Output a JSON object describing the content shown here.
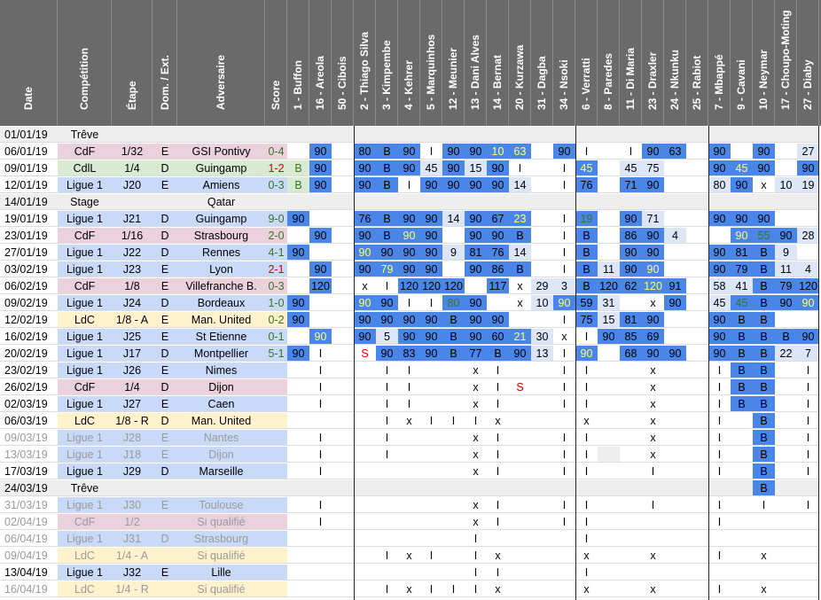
{
  "headers": [
    "Date",
    "Compétition",
    "Étape",
    "Dom. / Ext.",
    "Adversaire",
    "Score",
    "1 - Buffon",
    "16 - Areola",
    "50 - Cibois",
    "2 - Thiago Silva",
    "3 - Kimpembe",
    "4 - Kehrer",
    "5 - Marquinhos",
    "12 - Meunier",
    "13 - Dani Alves",
    "14 - Bernat",
    "20 - Kurzawa",
    "31 - Dagba",
    "34 - Nsoki",
    "6 - Verratti",
    "8 - Paredes",
    "11 - Di Maria",
    "23 - Draxler",
    "24 - Nkunku",
    "25 - Rabiot",
    "7 - Mbappé",
    "9 - Cavani",
    "10 - Neymar",
    "17 - Choupo-Moting",
    "27 - Diaby"
  ],
  "colors": {
    "header_bg": "#6a6a6a",
    "blue": "#4a86e8",
    "light_blue": "#c9daf8",
    "pale_blue": "#dce6f7",
    "cdf": "#ead1dc",
    "cdl": "#d9ead3",
    "ldc": "#fff2cc",
    "ligue1": "#c9daf8",
    "grey": "#eeeeee",
    "score_win": "#38761d",
    "score_loss": "#cc0000",
    "yellow": "#ffff66"
  },
  "rows": [
    {
      "date": "01/01/19",
      "comp": "Trêve",
      "type": "grey",
      "cells": {}
    },
    {
      "date": "06/01/19",
      "comp": "CdF",
      "etape": "1/32",
      "de": "E",
      "adv": "GSI Pontivy",
      "score": "0-4",
      "res": "W",
      "type": "cdf",
      "cells": {
        "7": "90B",
        "9": "80B",
        "10": "B",
        "11": "90B",
        "12": "I",
        "13": "90B",
        "14": "90B",
        "15": "10Y",
        "16": "63Y",
        "18": "90B",
        "19": "I",
        "21": "I",
        "22": "90B",
        "23": "63B",
        "25": "90B",
        "27": "90B",
        "29": "27"
      }
    },
    {
      "date": "09/01/19",
      "comp": "CdlL",
      "etape": "1/4",
      "de": "D",
      "adv": "Guingamp",
      "score": "1-2",
      "res": "L",
      "type": "cdl",
      "cells": {
        "6": "BG",
        "7": "90B",
        "9": "90B",
        "10": "B",
        "11": "90B",
        "12": "45",
        "13": "90B",
        "14": "15",
        "15": "90B",
        "16": "I",
        "18": "I",
        "19": "45Y",
        "21": "45",
        "22": "75",
        "25": "90B",
        "26": "45Y",
        "27": "90B",
        "29": "90B"
      }
    },
    {
      "date": "12/01/19",
      "comp": "Ligue 1",
      "etape": "J20",
      "de": "E",
      "adv": "Amiens",
      "score": "0-3",
      "res": "W",
      "type": "ligue1",
      "cells": {
        "6": "BG",
        "7": "90B",
        "9": "90B",
        "10": "B",
        "11": "I",
        "12": "90B",
        "13": "90B",
        "14": "90B",
        "15": "90B",
        "16": "14",
        "18": "I",
        "19": "76B",
        "21": "71B",
        "22": "90B",
        "25": "80",
        "26": "90B",
        "27": "x",
        "28": "10",
        "29": "19"
      }
    },
    {
      "date": "14/01/19",
      "comp": "Stage",
      "etape": "",
      "de": "",
      "adv": "Qatar",
      "score": "",
      "type": "grey",
      "cells": {}
    },
    {
      "date": "19/01/19",
      "comp": "Ligue 1",
      "etape": "J21",
      "de": "D",
      "adv": "Guingamp",
      "score": "9-0",
      "res": "W",
      "type": "ligue1",
      "cells": {
        "6": "90B",
        "9": "76B",
        "10": "B",
        "11": "90B",
        "12": "90B",
        "13": "14",
        "14": "90B",
        "15": "67B",
        "16": "23Y",
        "18": "I",
        "19": "19G",
        "21": "90B",
        "22": "71",
        "25": "90B",
        "26": "90B",
        "27": "90B"
      }
    },
    {
      "date": "23/01/19",
      "comp": "CdF",
      "etape": "1/16",
      "de": "D",
      "adv": "Strasbourg",
      "score": "2-0",
      "res": "W",
      "type": "cdf",
      "cells": {
        "7": "90B",
        "9": "90B",
        "10": "B",
        "11": "90Y",
        "12": "90B",
        "14": "90B",
        "15": "90B",
        "16": "B",
        "18": "I",
        "19": "B",
        "21": "86B",
        "22": "90B",
        "23": "4",
        "26": "90Y",
        "27": "55G",
        "28": "90B",
        "29": "28"
      }
    },
    {
      "date": "27/01/19",
      "comp": "Ligue 1",
      "etape": "J22",
      "de": "D",
      "adv": "Rennes",
      "score": "4-1",
      "res": "W",
      "type": "ligue1",
      "cells": {
        "6": "90B",
        "9": "90Y",
        "10": "90B",
        "11": "90B",
        "12": "90B",
        "13": "9",
        "14": "81B",
        "15": "76B",
        "16": "14",
        "18": "I",
        "19": "B",
        "21": "90B",
        "22": "90B",
        "25": "90B",
        "26": "81B",
        "27": "B",
        "28": "9"
      }
    },
    {
      "date": "03/02/19",
      "comp": "Ligue 1",
      "etape": "J23",
      "de": "E",
      "adv": "Lyon",
      "score": "2-1",
      "res": "L",
      "type": "ligue1",
      "cells": {
        "7": "90B",
        "9": "90B",
        "10": "79Y",
        "11": "90B",
        "12": "90B",
        "14": "90B",
        "15": "86B",
        "16": "B",
        "18": "I",
        "19": "B",
        "20": "11",
        "21": "90B",
        "22": "90Y",
        "25": "90B",
        "26": "79B",
        "27": "B",
        "28": "11",
        "29": "4"
      }
    },
    {
      "date": "06/02/19",
      "comp": "CdF",
      "etape": "1/8",
      "de": "E",
      "adv": "Villefranche B.",
      "score": "0-3",
      "res": "W",
      "type": "cdf",
      "cells": {
        "7": "120B",
        "9": "x",
        "10": "I",
        "11": "120B",
        "12": "120B",
        "13": "120B",
        "15": "117B",
        "16": "x",
        "17": "29",
        "18": "3",
        "19": "B",
        "20": "120B",
        "21": "62B",
        "22": "120Y",
        "23": "91B",
        "25": "58",
        "26": "41",
        "27": "B",
        "28": "79B",
        "29": "120B"
      }
    },
    {
      "date": "09/02/19",
      "comp": "Ligue 1",
      "etape": "J24",
      "de": "D",
      "adv": "Bordeaux",
      "score": "1-0",
      "res": "W",
      "type": "ligue1",
      "cells": {
        "6": "90B",
        "9": "90Y",
        "10": "90B",
        "11": "I",
        "12": "I",
        "13": "80G",
        "14": "90B",
        "16": "x",
        "17": "10",
        "18": "90Y",
        "19": "59B",
        "20": "31",
        "22": "x",
        "23": "90B",
        "25": "45",
        "26": "45G",
        "27": "B",
        "28": "90B",
        "29": "90Y"
      }
    },
    {
      "date": "12/02/19",
      "comp": "LdC",
      "etape": "1/8 - A",
      "de": "E",
      "adv": "Man. United",
      "score": "0-2",
      "res": "W",
      "type": "ldc",
      "cells": {
        "6": "90B",
        "9": "90B",
        "10": "90B",
        "11": "90B",
        "12": "90B",
        "13": "B",
        "14": "90B",
        "15": "90B",
        "18": "I",
        "19": "75B",
        "20": "15",
        "21": "81B",
        "22": "90B",
        "25": "90B",
        "26": "B",
        "27": "B"
      }
    },
    {
      "date": "16/02/19",
      "comp": "Ligue 1",
      "etape": "J25",
      "de": "E",
      "adv": "St Etienne",
      "score": "0-1",
      "res": "W",
      "type": "ligue1",
      "cells": {
        "7": "90Y",
        "9": "90B",
        "10": "5",
        "11": "90B",
        "12": "90B",
        "13": "B",
        "14": "90B",
        "15": "60B",
        "16": "21Y",
        "17": "30",
        "18": "x",
        "19": "I",
        "20": "90B",
        "21": "85B",
        "22": "69B",
        "25": "90B",
        "26": "B",
        "27": "B",
        "28": "B",
        "29": "90B"
      }
    },
    {
      "date": "20/02/19",
      "comp": "Ligue 1",
      "etape": "J17",
      "de": "D",
      "adv": "Montpellier",
      "score": "5-1",
      "res": "W",
      "type": "ligue1",
      "cells": {
        "6": "90B",
        "7": "I",
        "9": "SR",
        "10": "90B",
        "11": "83B",
        "12": "90B",
        "13": "B",
        "14": "77B",
        "15": "B",
        "16": "90B",
        "17": "13",
        "18": "I",
        "19": "90Y",
        "21": "68B",
        "22": "90B",
        "23": "90B",
        "25": "90B",
        "26": "B",
        "27": "B",
        "28": "22",
        "29": "7"
      }
    },
    {
      "date": "23/02/19",
      "comp": "Ligue 1",
      "etape": "J26",
      "de": "E",
      "adv": "Nimes",
      "score": "",
      "type": "ligue1",
      "cells": {
        "7": "I",
        "10": "I",
        "11": "I",
        "14": "x",
        "15": "I",
        "18": "I",
        "19": "I",
        "22": "x",
        "25": "I",
        "26": "B",
        "27": "B",
        "29": "I"
      }
    },
    {
      "date": "26/02/19",
      "comp": "CdF",
      "etape": "1/4",
      "de": "D",
      "adv": "Dijon",
      "score": "",
      "type": "cdf",
      "cells": {
        "7": "I",
        "10": "I",
        "11": "I",
        "14": "x",
        "15": "I",
        "16": "SR",
        "18": "I",
        "19": "I",
        "22": "x",
        "25": "I",
        "26": "B",
        "27": "B",
        "29": "I"
      }
    },
    {
      "date": "02/03/19",
      "comp": "Ligue 1",
      "etape": "J27",
      "de": "E",
      "adv": "Caen",
      "score": "",
      "type": "ligue1",
      "cells": {
        "7": "I",
        "10": "I",
        "11": "I",
        "14": "x",
        "15": "I",
        "18": "I",
        "19": "I",
        "22": "x",
        "25": "I",
        "26": "B",
        "27": "B",
        "29": "I"
      }
    },
    {
      "date": "06/03/19",
      "comp": "LdC",
      "etape": "1/8 - R",
      "de": "D",
      "adv": "Man. United",
      "score": "",
      "type": "ldc",
      "cells": {
        "10": "I",
        "11": "x",
        "12": "I",
        "13": "I",
        "14": "I",
        "15": "x",
        "19": "x",
        "22": "x",
        "25": "I",
        "27": "B",
        "29": "I"
      }
    },
    {
      "date": "09/03/19",
      "comp": "Ligue 1",
      "etape": "J28",
      "de": "E",
      "adv": "Nantes",
      "score": "",
      "faded": true,
      "type": "ligue1",
      "cells": {
        "7": "I",
        "10": "I",
        "14": "x",
        "15": "I",
        "18": "I",
        "19": "I",
        "22": "x",
        "25": "I",
        "27": "B",
        "29": "I"
      }
    },
    {
      "date": "13/03/19",
      "comp": "Ligue 1",
      "etape": "J18",
      "de": "E",
      "adv": "Dijon",
      "score": "",
      "faded": true,
      "type": "ligue1",
      "cells": {
        "7": "I",
        "10": "I",
        "14": "x",
        "15": "I",
        "18": "I",
        "19": "I",
        "20": "grey",
        "22": "x",
        "25": "I",
        "27": "B",
        "29": "I"
      }
    },
    {
      "date": "17/03/19",
      "comp": "Ligue 1",
      "etape": "J29",
      "de": "D",
      "adv": "Marseille",
      "score": "",
      "type": "ligue1",
      "cells": {
        "7": "I",
        "14": "x",
        "15": "I",
        "18": "I",
        "19": "I",
        "22": "I",
        "25": "I",
        "27": "B",
        "29": "I"
      }
    },
    {
      "date": "24/03/19",
      "comp": "Trêve",
      "type": "grey",
      "cells": {
        "27": "B"
      }
    },
    {
      "date": "31/03/19",
      "comp": "Ligue 1",
      "etape": "J30",
      "de": "E",
      "adv": "Toulouse",
      "score": "",
      "faded": true,
      "type": "ligue1",
      "cells": {
        "7": "I",
        "14": "x",
        "15": "I",
        "18": "I",
        "19": "I",
        "22": "I",
        "25": "I",
        "27": "I",
        "29": "I"
      }
    },
    {
      "date": "02/04/19",
      "comp": "CdF",
      "etape": "1/2",
      "de": "",
      "adv": "Si qualifié",
      "score": "",
      "faded": true,
      "type": "cdf",
      "cells": {
        "7": "I",
        "14": "x",
        "15": "I",
        "18": "I",
        "19": "I",
        "25": "I"
      }
    },
    {
      "date": "06/04/19",
      "comp": "Ligue 1",
      "etape": "J31",
      "de": "D",
      "adv": "Strasbourg",
      "score": "",
      "faded": true,
      "type": "ligue1",
      "cells": {
        "14": "I",
        "19": "I"
      }
    },
    {
      "date": "09/04/19",
      "comp": "LdC",
      "etape": "1/4 - A",
      "de": "",
      "adv": "Si qualifié",
      "score": "",
      "faded": true,
      "type": "ldc",
      "cells": {
        "10": "I",
        "11": "x",
        "12": "I",
        "14": "I",
        "15": "x",
        "19": "x",
        "22": "x",
        "25": "I",
        "27": "x"
      }
    },
    {
      "date": "13/04/19",
      "comp": "Ligue 1",
      "etape": "J32",
      "de": "E",
      "adv": "Lille",
      "score": "",
      "type": "ligue1",
      "cells": {
        "14": "I",
        "15": "I",
        "19": "I"
      }
    },
    {
      "date": "16/04/19",
      "comp": "LdC",
      "etape": "1/4 - R",
      "de": "",
      "adv": "Si qualifié",
      "score": "",
      "faded": true,
      "type": "ldc",
      "cells": {
        "10": "I",
        "11": "x",
        "12": "I",
        "13": "I",
        "14": "I",
        "15": "x",
        "19": "x",
        "22": "x",
        "25": "I",
        "27": "x"
      }
    }
  ]
}
